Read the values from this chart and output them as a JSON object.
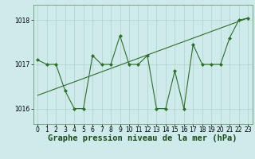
{
  "x": [
    0,
    1,
    2,
    3,
    4,
    5,
    6,
    7,
    8,
    9,
    10,
    11,
    12,
    13,
    14,
    15,
    16,
    17,
    18,
    19,
    20,
    21,
    22,
    23
  ],
  "y": [
    1017.1,
    1017.0,
    1017.0,
    1016.4,
    1016.0,
    1016.0,
    1017.2,
    1017.0,
    1017.0,
    1017.65,
    1017.0,
    1017.0,
    1017.2,
    1016.0,
    1016.0,
    1016.85,
    1016.0,
    1017.45,
    1017.0,
    1017.0,
    1017.0,
    1017.6,
    1018.0,
    1018.05
  ],
  "trend_x": [
    0,
    23
  ],
  "trend_y": [
    1016.3,
    1018.05
  ],
  "ylim": [
    1015.65,
    1018.35
  ],
  "yticks": [
    1016,
    1017,
    1018
  ],
  "xlim": [
    -0.5,
    23.5
  ],
  "xticks": [
    0,
    1,
    2,
    3,
    4,
    5,
    6,
    7,
    8,
    9,
    10,
    11,
    12,
    13,
    14,
    15,
    16,
    17,
    18,
    19,
    20,
    21,
    22,
    23
  ],
  "xlabel": "Graphe pression niveau de la mer (hPa)",
  "line_color": "#2d6e2d",
  "trend_color": "#2d6e2d",
  "bg_color": "#ceeaea",
  "grid_color": "#b0d4c8",
  "tick_label_fontsize": 5.5,
  "xlabel_fontsize": 7.5
}
